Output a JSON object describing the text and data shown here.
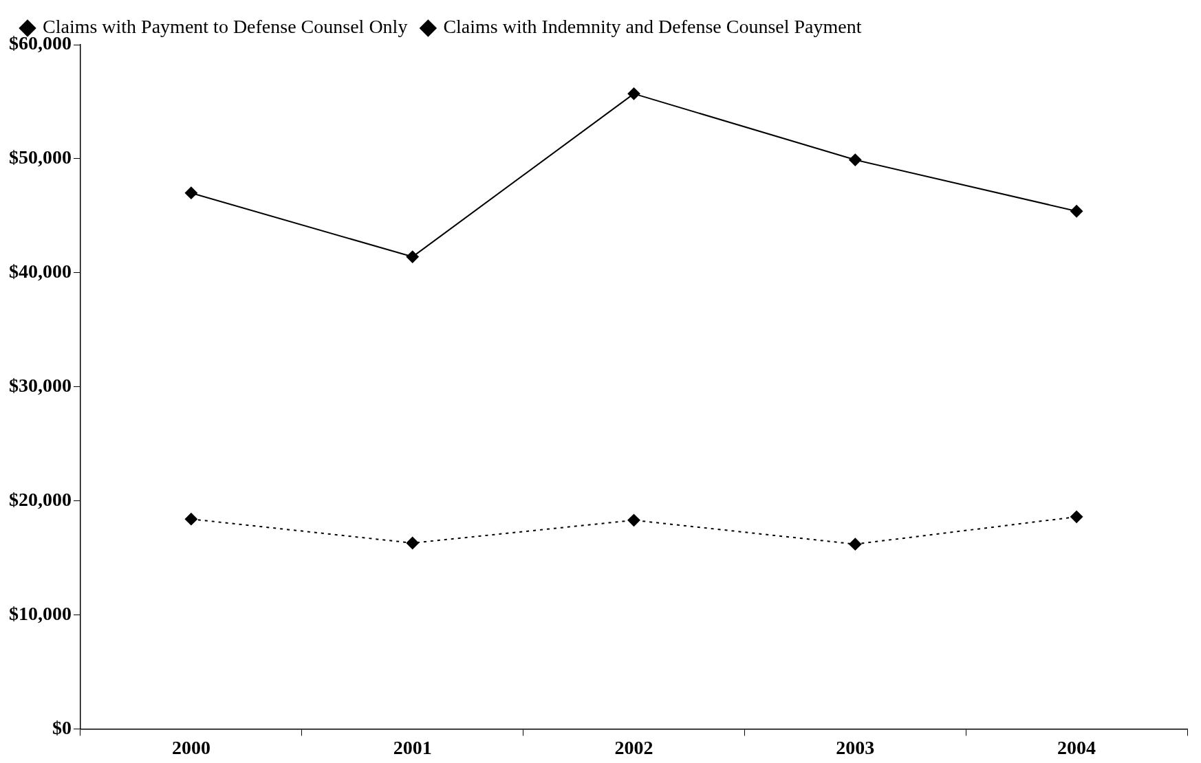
{
  "chart_data": {
    "type": "line",
    "categories": [
      "2000",
      "2001",
      "2002",
      "2003",
      "2004"
    ],
    "series": [
      {
        "name": "Claims with Payment to Defense Counsel Only",
        "color": "#000000",
        "line_style": "dotted",
        "values": [
          18400,
          16300,
          18300,
          16200,
          18600
        ]
      },
      {
        "name": "Claims with Indemnity and Defense Counsel Payment",
        "color": "#000000",
        "line_style": "solid",
        "values": [
          47000,
          41400,
          55700,
          49900,
          45400
        ]
      }
    ],
    "ylim": [
      0,
      60000
    ],
    "yticks": [
      {
        "value": 0,
        "label": "$0"
      },
      {
        "value": 10000,
        "label": "$10,000"
      },
      {
        "value": 20000,
        "label": "$20,000"
      },
      {
        "value": 30000,
        "label": "$30,000"
      },
      {
        "value": 40000,
        "label": "$40,000"
      },
      {
        "value": 50000,
        "label": "$50,000"
      },
      {
        "value": 60000,
        "label": "$60,000"
      }
    ],
    "grid": false,
    "legend": "top left",
    "marker": "diamond"
  }
}
